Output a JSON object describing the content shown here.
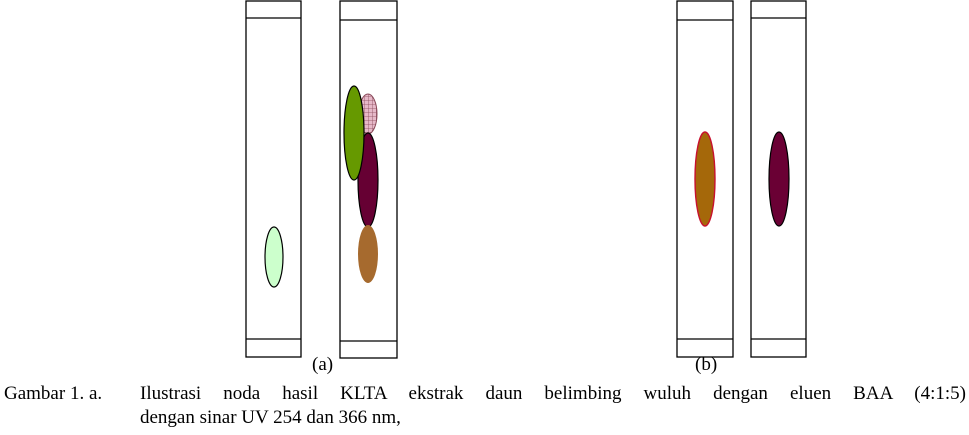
{
  "panels": {
    "a_label": "(a)",
    "b_label": "(b)"
  },
  "colors": {
    "spot_light_green": "#ccffcc",
    "spot_olive_green": "#669900",
    "spot_pink_hatched": "#e6b8c8",
    "spot_maroon": "#660033",
    "spot_brown": "#a66a2e",
    "spot_orange_brown": "#a5680a",
    "spot_dark_maroon": "#6a0034",
    "spot_outline_red": "#c8102e"
  },
  "caption": {
    "prefix": "Gambar 1. a.",
    "line1": "Ilustrasi noda  hasil KLTA ekstrak daun belimbing wuluh dengan eluen BAA (4:1:5)",
    "line2": "dengan sinar UV 254 dan 366 nm,"
  }
}
